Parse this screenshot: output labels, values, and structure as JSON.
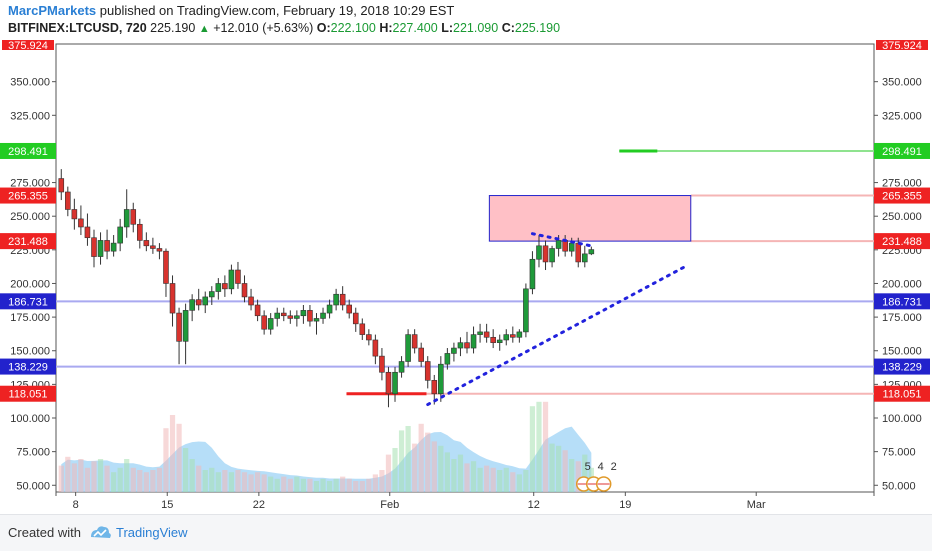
{
  "header": {
    "author": "MarcPMarkets",
    "published": "published on TradingView.com, February 19, 2018 10:29 EST",
    "symbol": "BITFINEX:LTCUSD, 720",
    "last": "225.190",
    "change": "+12.010 (+5.63%)",
    "open_label": "O:",
    "open": "222.100",
    "high_label": "H:",
    "high": "227.400",
    "low_label": "L:",
    "low": "221.090",
    "close_label": "C:",
    "close": "225.190"
  },
  "footer": {
    "created": "Created with",
    "brand": "TradingView"
  },
  "chart_data": {
    "type": "candlestick",
    "y_axis": {
      "min": 45,
      "max": 378,
      "ticks": [
        "350.000",
        "325.000",
        "300.000",
        "275.000",
        "250.000",
        "225.000",
        "200.000",
        "175.000",
        "150.000",
        "125.000",
        "100.000",
        "75.000",
        "50.000"
      ],
      "top_label": "375.924"
    },
    "x_ticks": [
      {
        "label": "8",
        "date": "2018-01-08"
      },
      {
        "label": "15",
        "date": "2018-01-15"
      },
      {
        "label": "22",
        "date": "2018-01-22"
      },
      {
        "label": "Feb",
        "date": "2018-02-01"
      },
      {
        "label": "12",
        "date": "2018-02-12"
      },
      {
        "label": "19",
        "date": "2018-02-19"
      },
      {
        "label": "Mar",
        "date": "2018-03-01"
      }
    ],
    "price_levels": [
      {
        "value": 298.491,
        "label": "298.491",
        "color": "#22cc22",
        "line": "#8fe38f"
      },
      {
        "value": 265.355,
        "label": "265.355",
        "color": "#ee2222",
        "line": "#f5b5b5"
      },
      {
        "value": 231.488,
        "label": "231.488",
        "color": "#ee2222",
        "line": "#f5b5b5"
      },
      {
        "value": 186.731,
        "label": "186.731",
        "color": "#2222cc",
        "line": "#a9a9f0"
      },
      {
        "value": 138.229,
        "label": "138.229",
        "color": "#2222cc",
        "line": "#a9a9f0"
      },
      {
        "value": 118.051,
        "label": "118.051",
        "color": "#ee2222",
        "line": "#f5b5b5"
      }
    ],
    "resistance_zone": {
      "from": 231.488,
      "to": 265.355,
      "start": "2018-02-08",
      "end": "2018-02-24"
    },
    "candles": [
      {
        "o": 278,
        "h": 285,
        "l": 262,
        "c": 268
      },
      {
        "o": 268,
        "h": 272,
        "l": 250,
        "c": 255
      },
      {
        "o": 255,
        "h": 263,
        "l": 240,
        "c": 248
      },
      {
        "o": 248,
        "h": 258,
        "l": 236,
        "c": 242
      },
      {
        "o": 242,
        "h": 252,
        "l": 228,
        "c": 234
      },
      {
        "o": 234,
        "h": 240,
        "l": 212,
        "c": 220
      },
      {
        "o": 220,
        "h": 238,
        "l": 214,
        "c": 232
      },
      {
        "o": 232,
        "h": 240,
        "l": 218,
        "c": 224
      },
      {
        "o": 224,
        "h": 236,
        "l": 220,
        "c": 230
      },
      {
        "o": 230,
        "h": 248,
        "l": 224,
        "c": 242
      },
      {
        "o": 242,
        "h": 270,
        "l": 234,
        "c": 255
      },
      {
        "o": 255,
        "h": 260,
        "l": 238,
        "c": 244
      },
      {
        "o": 244,
        "h": 248,
        "l": 226,
        "c": 232
      },
      {
        "o": 232,
        "h": 238,
        "l": 224,
        "c": 228
      },
      {
        "o": 228,
        "h": 234,
        "l": 222,
        "c": 226
      },
      {
        "o": 226,
        "h": 230,
        "l": 218,
        "c": 224
      },
      {
        "o": 224,
        "h": 226,
        "l": 190,
        "c": 200
      },
      {
        "o": 200,
        "h": 206,
        "l": 168,
        "c": 178
      },
      {
        "o": 178,
        "h": 182,
        "l": 140,
        "c": 157
      },
      {
        "o": 157,
        "h": 185,
        "l": 140,
        "c": 180
      },
      {
        "o": 180,
        "h": 192,
        "l": 172,
        "c": 188
      },
      {
        "o": 188,
        "h": 196,
        "l": 180,
        "c": 184
      },
      {
        "o": 184,
        "h": 194,
        "l": 178,
        "c": 190
      },
      {
        "o": 190,
        "h": 198,
        "l": 184,
        "c": 194
      },
      {
        "o": 194,
        "h": 204,
        "l": 188,
        "c": 200
      },
      {
        "o": 200,
        "h": 206,
        "l": 190,
        "c": 196
      },
      {
        "o": 196,
        "h": 214,
        "l": 192,
        "c": 210
      },
      {
        "o": 210,
        "h": 216,
        "l": 196,
        "c": 200
      },
      {
        "o": 200,
        "h": 206,
        "l": 186,
        "c": 190
      },
      {
        "o": 190,
        "h": 196,
        "l": 180,
        "c": 184
      },
      {
        "o": 184,
        "h": 188,
        "l": 172,
        "c": 176
      },
      {
        "o": 176,
        "h": 180,
        "l": 162,
        "c": 166
      },
      {
        "o": 166,
        "h": 178,
        "l": 162,
        "c": 174
      },
      {
        "o": 174,
        "h": 182,
        "l": 168,
        "c": 178
      },
      {
        "o": 178,
        "h": 182,
        "l": 172,
        "c": 176
      },
      {
        "o": 176,
        "h": 180,
        "l": 170,
        "c": 174
      },
      {
        "o": 174,
        "h": 180,
        "l": 168,
        "c": 176
      },
      {
        "o": 176,
        "h": 184,
        "l": 170,
        "c": 180
      },
      {
        "o": 180,
        "h": 184,
        "l": 168,
        "c": 172
      },
      {
        "o": 172,
        "h": 178,
        "l": 162,
        "c": 174
      },
      {
        "o": 174,
        "h": 182,
        "l": 170,
        "c": 178
      },
      {
        "o": 178,
        "h": 188,
        "l": 174,
        "c": 184
      },
      {
        "o": 184,
        "h": 196,
        "l": 180,
        "c": 192
      },
      {
        "o": 192,
        "h": 198,
        "l": 180,
        "c": 184
      },
      {
        "o": 184,
        "h": 188,
        "l": 174,
        "c": 178
      },
      {
        "o": 178,
        "h": 182,
        "l": 164,
        "c": 170
      },
      {
        "o": 170,
        "h": 174,
        "l": 158,
        "c": 162
      },
      {
        "o": 162,
        "h": 166,
        "l": 154,
        "c": 158
      },
      {
        "o": 158,
        "h": 162,
        "l": 140,
        "c": 146
      },
      {
        "o": 146,
        "h": 152,
        "l": 128,
        "c": 134
      },
      {
        "o": 134,
        "h": 138,
        "l": 108,
        "c": 118
      },
      {
        "o": 118,
        "h": 138,
        "l": 112,
        "c": 134
      },
      {
        "o": 134,
        "h": 146,
        "l": 130,
        "c": 142
      },
      {
        "o": 142,
        "h": 166,
        "l": 138,
        "c": 162
      },
      {
        "o": 162,
        "h": 166,
        "l": 148,
        "c": 152
      },
      {
        "o": 152,
        "h": 156,
        "l": 138,
        "c": 142
      },
      {
        "o": 142,
        "h": 146,
        "l": 122,
        "c": 128
      },
      {
        "o": 128,
        "h": 132,
        "l": 110,
        "c": 118
      },
      {
        "o": 118,
        "h": 146,
        "l": 112,
        "c": 140
      },
      {
        "o": 140,
        "h": 152,
        "l": 136,
        "c": 148
      },
      {
        "o": 148,
        "h": 156,
        "l": 142,
        "c": 152
      },
      {
        "o": 152,
        "h": 160,
        "l": 146,
        "c": 156
      },
      {
        "o": 156,
        "h": 164,
        "l": 148,
        "c": 152
      },
      {
        "o": 152,
        "h": 168,
        "l": 148,
        "c": 162
      },
      {
        "o": 162,
        "h": 170,
        "l": 156,
        "c": 164
      },
      {
        "o": 164,
        "h": 170,
        "l": 156,
        "c": 160
      },
      {
        "o": 160,
        "h": 166,
        "l": 152,
        "c": 156
      },
      {
        "o": 156,
        "h": 162,
        "l": 150,
        "c": 158
      },
      {
        "o": 158,
        "h": 166,
        "l": 154,
        "c": 162
      },
      {
        "o": 162,
        "h": 168,
        "l": 156,
        "c": 160
      },
      {
        "o": 160,
        "h": 166,
        "l": 156,
        "c": 164
      },
      {
        "o": 164,
        "h": 200,
        "l": 160,
        "c": 196
      },
      {
        "o": 196,
        "h": 224,
        "l": 192,
        "c": 218
      },
      {
        "o": 218,
        "h": 236,
        "l": 212,
        "c": 228
      },
      {
        "o": 228,
        "h": 232,
        "l": 210,
        "c": 216
      },
      {
        "o": 216,
        "h": 228,
        "l": 212,
        "c": 226
      },
      {
        "o": 226,
        "h": 236,
        "l": 220,
        "c": 232
      },
      {
        "o": 232,
        "h": 236,
        "l": 220,
        "c": 224
      },
      {
        "o": 224,
        "h": 234,
        "l": 220,
        "c": 230
      },
      {
        "o": 230,
        "h": 234,
        "l": 212,
        "c": 216
      },
      {
        "o": 216,
        "h": 228,
        "l": 212,
        "c": 222
      },
      {
        "o": 222,
        "h": 227.4,
        "l": 221.09,
        "c": 225.19
      }
    ],
    "volume": [
      0.24,
      0.32,
      0.26,
      0.3,
      0.22,
      0.28,
      0.3,
      0.24,
      0.18,
      0.22,
      0.3,
      0.22,
      0.2,
      0.18,
      0.2,
      0.22,
      0.58,
      0.7,
      0.62,
      0.4,
      0.3,
      0.24,
      0.2,
      0.22,
      0.18,
      0.2,
      0.18,
      0.2,
      0.18,
      0.16,
      0.18,
      0.16,
      0.14,
      0.12,
      0.14,
      0.12,
      0.14,
      0.12,
      0.12,
      0.1,
      0.12,
      0.1,
      0.12,
      0.14,
      0.12,
      0.1,
      0.1,
      0.12,
      0.16,
      0.2,
      0.34,
      0.4,
      0.56,
      0.6,
      0.44,
      0.62,
      0.54,
      0.46,
      0.42,
      0.36,
      0.3,
      0.34,
      0.26,
      0.28,
      0.22,
      0.24,
      0.22,
      0.2,
      0.22,
      0.18,
      0.16,
      0.2,
      0.78,
      0.82,
      0.82,
      0.44,
      0.42,
      0.38,
      0.3,
      0.28,
      0.34,
      0.22
    ],
    "numbered_events": [
      "5",
      "4",
      "2"
    ]
  }
}
